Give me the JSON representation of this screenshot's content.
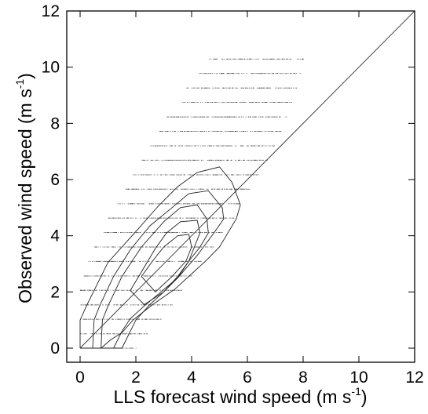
{
  "chart_data": {
    "type": "scatter",
    "xlabel": {
      "main": "LLS forecast wind speed (m s",
      "sup": "-1",
      "close": ")"
    },
    "ylabel": {
      "main": "Observed wind speed (m s",
      "sup": "-1",
      "close": ")"
    },
    "xlim": [
      0,
      12
    ],
    "ylim": [
      0,
      12
    ],
    "xticks": [
      "0",
      "2",
      "4",
      "6",
      "8",
      "10",
      "12"
    ],
    "yticks": [
      "0",
      "2",
      "4",
      "6",
      "8",
      "10",
      "12"
    ],
    "grid": false,
    "legend": "none",
    "reference_line": {
      "x": [
        0,
        12
      ],
      "y": [
        0,
        12
      ]
    },
    "scatter_note": "quantized observations at ~0.51 m/s steps",
    "observed_levels": [
      0.0,
      0.51,
      1.03,
      1.54,
      2.06,
      2.57,
      3.09,
      3.6,
      4.12,
      4.63,
      5.14,
      5.66,
      6.17,
      6.69,
      7.2,
      7.72,
      8.23,
      8.75,
      9.26,
      9.78,
      10.29
    ],
    "scatter_extent": [
      [
        0.0,
        2.0
      ],
      [
        0.0,
        2.4
      ],
      [
        0.0,
        2.9
      ],
      [
        0.0,
        3.3
      ],
      [
        0.0,
        3.7
      ],
      [
        0.1,
        4.0
      ],
      [
        0.3,
        4.4
      ],
      [
        0.5,
        4.8
      ],
      [
        0.8,
        5.1
      ],
      [
        1.0,
        5.5
      ],
      [
        1.3,
        5.8
      ],
      [
        1.6,
        6.1
      ],
      [
        1.9,
        6.4
      ],
      [
        2.2,
        6.7
      ],
      [
        2.5,
        7.0
      ],
      [
        2.8,
        7.2
      ],
      [
        3.1,
        7.4
      ],
      [
        3.5,
        7.6
      ],
      [
        3.8,
        7.8
      ],
      [
        4.2,
        7.9
      ],
      [
        4.6,
        8.0
      ]
    ],
    "contours": [
      {
        "name": "c1",
        "x": [
          0.0,
          0.0,
          0.25,
          1.0,
          2.0,
          2.8,
          3.5,
          4.2,
          5.0,
          5.45,
          5.75,
          5.6,
          5.0,
          4.5,
          3.4,
          2.6,
          1.9,
          1.5,
          1.1,
          0.75,
          0.55,
          0.4,
          0.25,
          0.0
        ],
        "y": [
          0.0,
          1.0,
          1.55,
          3.05,
          4.15,
          5.05,
          5.75,
          6.25,
          6.45,
          5.9,
          5.1,
          4.6,
          3.6,
          3.1,
          2.1,
          1.55,
          1.0,
          0.55,
          0.3,
          0.0,
          0.0,
          0.0,
          0.0,
          0.0
        ]
      },
      {
        "name": "c2",
        "x": [
          0.45,
          0.5,
          0.7,
          1.2,
          1.8,
          2.5,
          3.3,
          3.9,
          4.6,
          5.1,
          5.15,
          4.8,
          4.2,
          3.5,
          2.9,
          2.3,
          1.8,
          1.5,
          1.2,
          0.85,
          0.45
        ],
        "y": [
          0.0,
          1.0,
          1.5,
          2.55,
          3.5,
          4.35,
          5.0,
          5.5,
          5.6,
          5.0,
          4.6,
          4.1,
          3.3,
          2.5,
          2.0,
          1.5,
          1.05,
          0.6,
          0.0,
          0.0,
          0.0
        ]
      },
      {
        "name": "c3",
        "x": [
          0.75,
          0.8,
          1.0,
          1.5,
          2.2,
          3.0,
          3.6,
          4.2,
          4.55,
          4.6,
          4.3,
          3.9,
          3.5,
          3.0,
          2.5,
          2.0,
          1.5,
          0.75
        ],
        "y": [
          0.0,
          1.0,
          1.5,
          2.55,
          3.6,
          4.5,
          5.0,
          5.1,
          4.6,
          4.1,
          3.6,
          3.1,
          2.5,
          2.0,
          1.55,
          1.0,
          0.0,
          0.0
        ]
      },
      {
        "name": "c4",
        "x": [
          1.8,
          2.1,
          2.7,
          3.1,
          3.6,
          4.2,
          4.3,
          4.1,
          3.9,
          3.5,
          3.0,
          2.3,
          1.8
        ],
        "y": [
          2.05,
          2.55,
          3.55,
          4.1,
          4.5,
          4.55,
          4.1,
          3.6,
          3.1,
          2.55,
          2.0,
          1.55,
          2.05
        ]
      },
      {
        "name": "c5",
        "x": [
          2.2,
          2.6,
          3.0,
          3.5,
          3.9,
          4.0,
          3.8,
          3.3,
          2.7,
          2.2
        ],
        "y": [
          2.55,
          3.1,
          3.6,
          4.0,
          4.05,
          3.6,
          3.1,
          2.55,
          2.0,
          2.55
        ]
      }
    ]
  }
}
